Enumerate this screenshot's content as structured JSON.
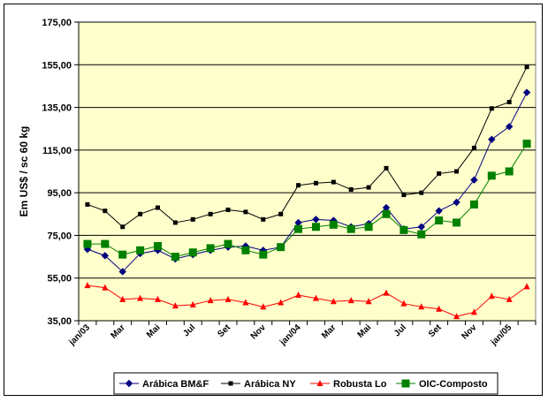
{
  "chart_data": {
    "type": "line",
    "title": "",
    "xlabel": "",
    "ylabel": "Em US$ / sc 60 kg",
    "ylim": [
      35,
      175
    ],
    "yticks": [
      "35,00",
      "55,00",
      "75,00",
      "95,00",
      "115,00",
      "135,00",
      "155,00",
      "175,00"
    ],
    "ytick_values": [
      35,
      55,
      75,
      95,
      115,
      135,
      155,
      175
    ],
    "grid": true,
    "legend_position": "bottom",
    "plot_background": "#ffffcc",
    "x": [
      "jan/03",
      "fev/03",
      "mar/03",
      "abr/03",
      "mai/03",
      "jun/03",
      "jul/03",
      "ago/03",
      "set/03",
      "out/03",
      "nov/03",
      "dez/03",
      "jan/04",
      "fev/04",
      "mar/04",
      "abr/04",
      "mai/04",
      "jun/04",
      "jul/04",
      "ago/04",
      "set/04",
      "out/04",
      "nov/04",
      "dez/04",
      "jan/05",
      "fev/05"
    ],
    "xtick_labels": [
      {
        "index": 0,
        "label": "jan/03"
      },
      {
        "index": 2,
        "label": "Mar"
      },
      {
        "index": 4,
        "label": "Mai"
      },
      {
        "index": 6,
        "label": "Jul"
      },
      {
        "index": 8,
        "label": "Set"
      },
      {
        "index": 10,
        "label": "Nov"
      },
      {
        "index": 12,
        "label": "jan/04"
      },
      {
        "index": 14,
        "label": "Mar"
      },
      {
        "index": 16,
        "label": "Mai"
      },
      {
        "index": 18,
        "label": "Jul"
      },
      {
        "index": 20,
        "label": "Set"
      },
      {
        "index": 22,
        "label": "Nov"
      },
      {
        "index": 24,
        "label": "jan/05"
      }
    ],
    "series": [
      {
        "name": "Arábica BM&F",
        "color": "#000080",
        "marker": "diamond",
        "values": [
          68.5,
          65.5,
          58,
          66.5,
          68,
          64,
          66,
          68,
          69.5,
          70,
          68,
          69.5,
          81,
          82.5,
          82,
          79,
          80.5,
          88,
          78,
          79,
          86.5,
          90.5,
          101,
          120,
          126,
          142
        ]
      },
      {
        "name": "Arábica NY",
        "color": "#000000",
        "marker": "square-small",
        "values": [
          89.5,
          86.5,
          79,
          85,
          88,
          81,
          82.5,
          85,
          87,
          86,
          82.5,
          85,
          98.5,
          99.5,
          100,
          96.5,
          97.5,
          106.5,
          94,
          95,
          104,
          105,
          116,
          134.5,
          137.5,
          154
        ]
      },
      {
        "name": "Robusta Lo",
        "color": "#ff0000",
        "marker": "triangle",
        "values": [
          51.5,
          50.5,
          45,
          45.5,
          45,
          42,
          42.5,
          44.5,
          45,
          43.5,
          41.5,
          43.5,
          47,
          45.5,
          44,
          44.5,
          44,
          48,
          43,
          41.5,
          40.5,
          37,
          39,
          46.5,
          45,
          51
        ]
      },
      {
        "name": "OIC-Composto",
        "color": "#008000",
        "marker": "square-large",
        "values": [
          71,
          71,
          66,
          68,
          70,
          65,
          67,
          69,
          71,
          68,
          66,
          69.5,
          78,
          79,
          80,
          78,
          79,
          85,
          77.5,
          75.5,
          82,
          81,
          89.5,
          103,
          105,
          118
        ]
      }
    ]
  }
}
